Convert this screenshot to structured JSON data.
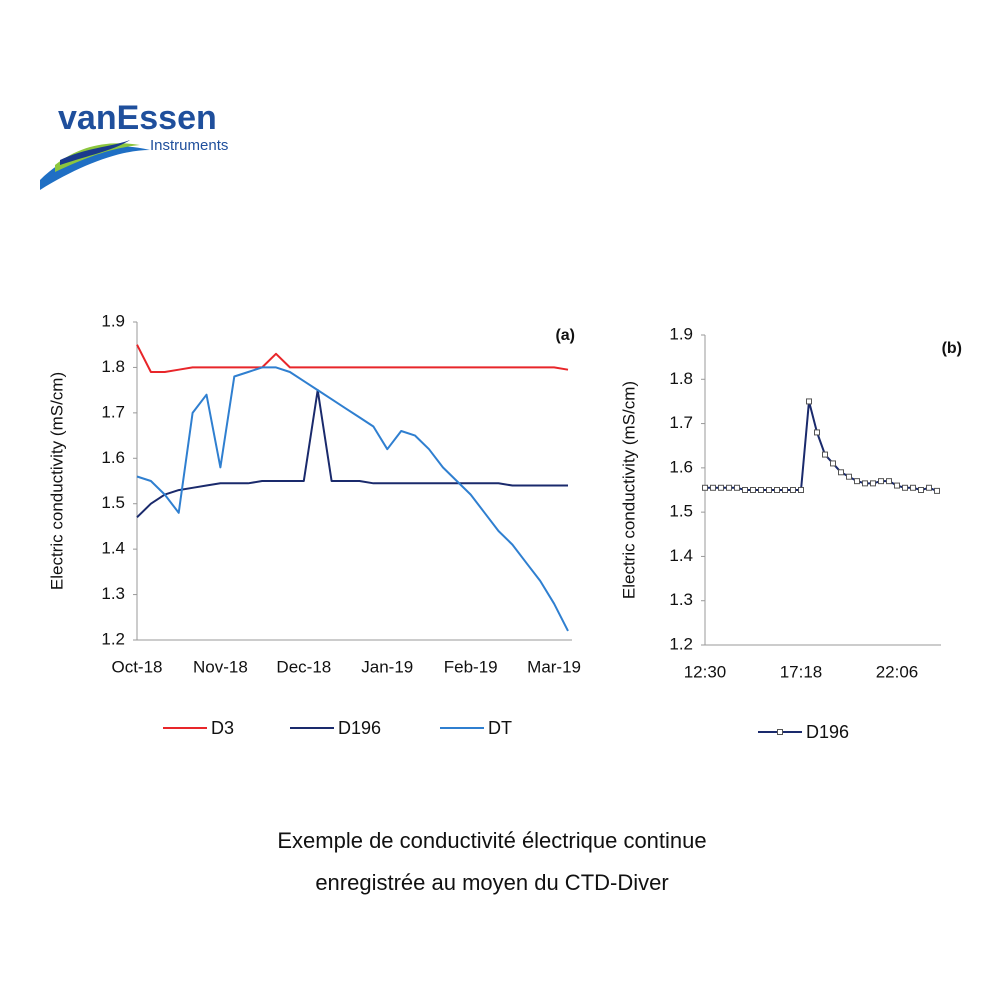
{
  "logo": {
    "name": "vanEssen",
    "sub": "Instruments"
  },
  "chart_data": [
    {
      "type": "line",
      "panel": "(a)",
      "y_label": "Electric conductivity (mS/cm)",
      "categories": [
        "Oct-18",
        null,
        null,
        null,
        null,
        null,
        "Nov-18",
        null,
        null,
        null,
        null,
        null,
        "Dec-18",
        null,
        null,
        null,
        null,
        null,
        "Jan-19",
        null,
        null,
        null,
        null,
        null,
        "Feb-19",
        null,
        null,
        null,
        null,
        null,
        "Mar-19",
        null
      ],
      "ylim": [
        1.2,
        1.9
      ],
      "yticks": [
        1.2,
        1.3,
        1.4,
        1.5,
        1.6,
        1.7,
        1.8,
        1.9
      ],
      "grid": false,
      "series": [
        {
          "name": "D3",
          "color": "#e8262a",
          "values": [
            1.85,
            1.79,
            1.79,
            1.795,
            1.8,
            1.8,
            1.8,
            1.8,
            1.8,
            1.8,
            1.83,
            1.8,
            1.8,
            1.8,
            1.8,
            1.8,
            1.8,
            1.8,
            1.8,
            1.8,
            1.8,
            1.8,
            1.8,
            1.8,
            1.8,
            1.8,
            1.8,
            1.8,
            1.8,
            1.8,
            1.8,
            1.795
          ]
        },
        {
          "name": "D196",
          "color": "#1a2a6c",
          "values": [
            1.47,
            1.5,
            1.52,
            1.53,
            1.535,
            1.54,
            1.545,
            1.545,
            1.545,
            1.55,
            1.55,
            1.55,
            1.55,
            1.75,
            1.55,
            1.55,
            1.55,
            1.545,
            1.545,
            1.545,
            1.545,
            1.545,
            1.545,
            1.545,
            1.545,
            1.545,
            1.545,
            1.54,
            1.54,
            1.54,
            1.54,
            1.54
          ]
        },
        {
          "name": "DT",
          "color": "#2f7fd0",
          "values": [
            1.56,
            1.55,
            1.52,
            1.48,
            1.7,
            1.74,
            1.58,
            1.78,
            1.79,
            1.8,
            1.8,
            1.79,
            1.77,
            1.75,
            1.73,
            1.71,
            1.69,
            1.67,
            1.62,
            1.66,
            1.65,
            1.62,
            1.58,
            1.55,
            1.52,
            1.48,
            1.44,
            1.41,
            1.37,
            1.33,
            1.28,
            1.22
          ]
        }
      ]
    },
    {
      "type": "line",
      "panel": "(b)",
      "y_label": "Electric conductivity (mS/cm)",
      "categories": [
        "12:30",
        null,
        null,
        null,
        null,
        null,
        null,
        null,
        null,
        null,
        null,
        null,
        "17:18",
        null,
        null,
        null,
        null,
        null,
        null,
        null,
        null,
        null,
        null,
        null,
        "22:06",
        null,
        null,
        null,
        null,
        null
      ],
      "ylim": [
        1.2,
        1.9
      ],
      "yticks": [
        1.2,
        1.3,
        1.4,
        1.5,
        1.6,
        1.7,
        1.8,
        1.9
      ],
      "grid": false,
      "series": [
        {
          "name": "D196",
          "color": "#1a2a6c",
          "marker": "square",
          "values": [
            1.555,
            1.555,
            1.555,
            1.555,
            1.555,
            1.55,
            1.55,
            1.55,
            1.55,
            1.55,
            1.55,
            1.55,
            1.55,
            1.75,
            1.68,
            1.63,
            1.61,
            1.59,
            1.58,
            1.57,
            1.565,
            1.565,
            1.57,
            1.57,
            1.56,
            1.555,
            1.555,
            1.55,
            1.555,
            1.548
          ]
        }
      ]
    }
  ],
  "caption": [
    "Exemple de conductivité électrique continue",
    "enregistrée au moyen du CTD-Diver"
  ]
}
